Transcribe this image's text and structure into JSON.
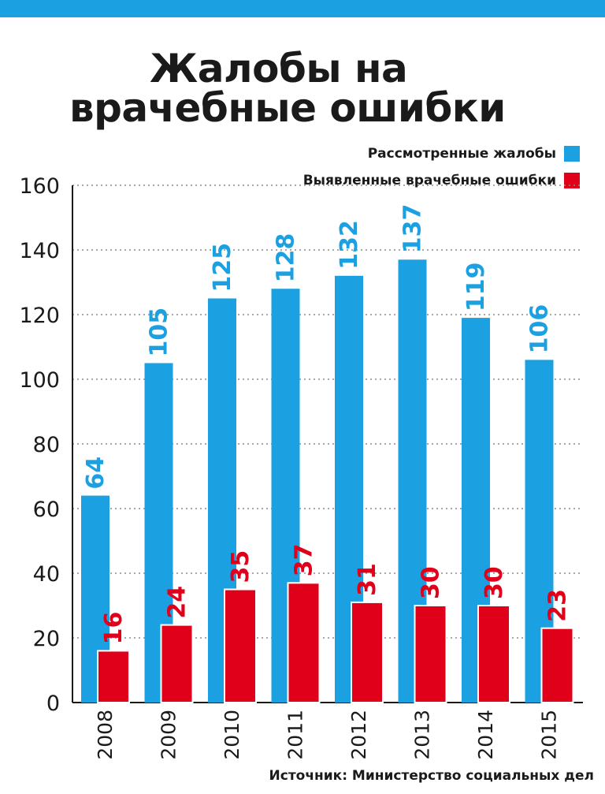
{
  "title_line1": "Жалобы на",
  "title_line2": "врачебные ошибки",
  "source": "Источник: Министерство социальных дел",
  "colors": {
    "complaints": "#1ba1e2",
    "errors": "#e1001a",
    "band": "#1ba1e2"
  },
  "chart_data": {
    "type": "bar",
    "categories": [
      "2008",
      "2009",
      "2010",
      "2011",
      "2012",
      "2013",
      "2014",
      "2015"
    ],
    "series": [
      {
        "name": "Рассмотренные жалобы",
        "color": "#1ba1e2",
        "values": [
          64,
          105,
          125,
          128,
          132,
          137,
          119,
          106
        ]
      },
      {
        "name": "Выявленные врачебные ошибки",
        "color": "#e1001a",
        "values": [
          16,
          24,
          35,
          37,
          31,
          30,
          30,
          23
        ]
      }
    ],
    "yticks": [
      0,
      20,
      40,
      60,
      80,
      100,
      120,
      140,
      160
    ],
    "ylim": [
      0,
      160
    ],
    "grid": true,
    "legend": "top-right"
  }
}
